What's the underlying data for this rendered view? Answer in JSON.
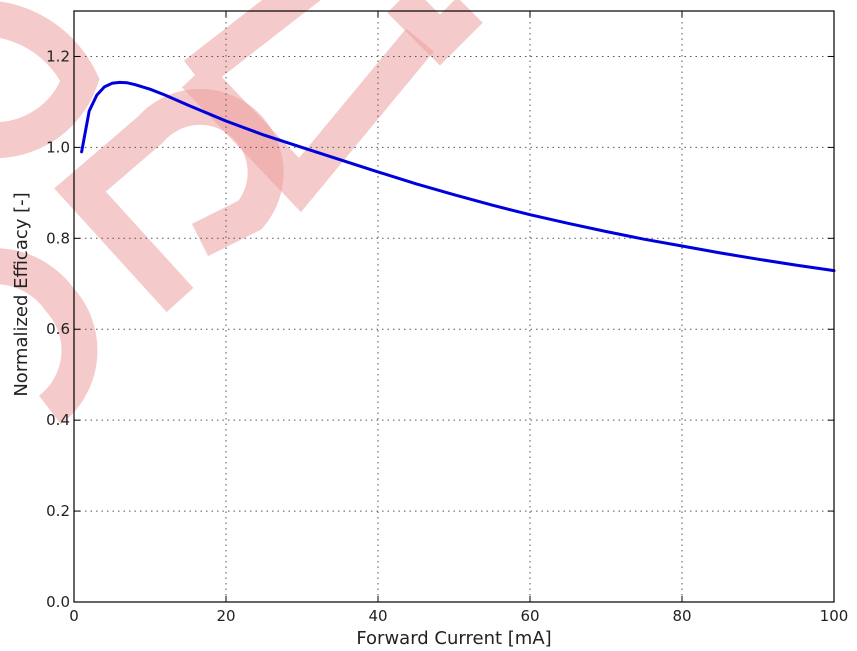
{
  "chart_data": {
    "type": "line",
    "xlabel": "Forward Current [mA]",
    "ylabel": "Normalized Efficacy [-]",
    "xlim": [
      0,
      100
    ],
    "ylim": [
      0.0,
      1.3
    ],
    "xticks": [
      0,
      20,
      40,
      60,
      80,
      100
    ],
    "yticks": [
      0.0,
      0.2,
      0.4,
      0.6,
      0.8,
      1.0,
      1.2
    ],
    "xtick_labels": [
      "0",
      "20",
      "40",
      "60",
      "80",
      "100"
    ],
    "ytick_labels": [
      "0.0",
      "0.2",
      "0.4",
      "0.6",
      "0.8",
      "1.0",
      "1.2"
    ],
    "grid": true,
    "series": [
      {
        "color": "#0000dd",
        "x": [
          1,
          2,
          3,
          4,
          5,
          6,
          7,
          8,
          10,
          12,
          15,
          20,
          25,
          30,
          35,
          40,
          45,
          50,
          55,
          60,
          65,
          70,
          75,
          80,
          85,
          90,
          95,
          100
        ],
        "y": [
          0.99,
          1.08,
          1.115,
          1.133,
          1.141,
          1.143,
          1.142,
          1.138,
          1.128,
          1.115,
          1.093,
          1.058,
          1.027,
          1.0,
          0.973,
          0.946,
          0.92,
          0.896,
          0.873,
          0.852,
          0.833,
          0.815,
          0.798,
          0.783,
          0.768,
          0.754,
          0.741,
          0.729
        ]
      }
    ]
  }
}
